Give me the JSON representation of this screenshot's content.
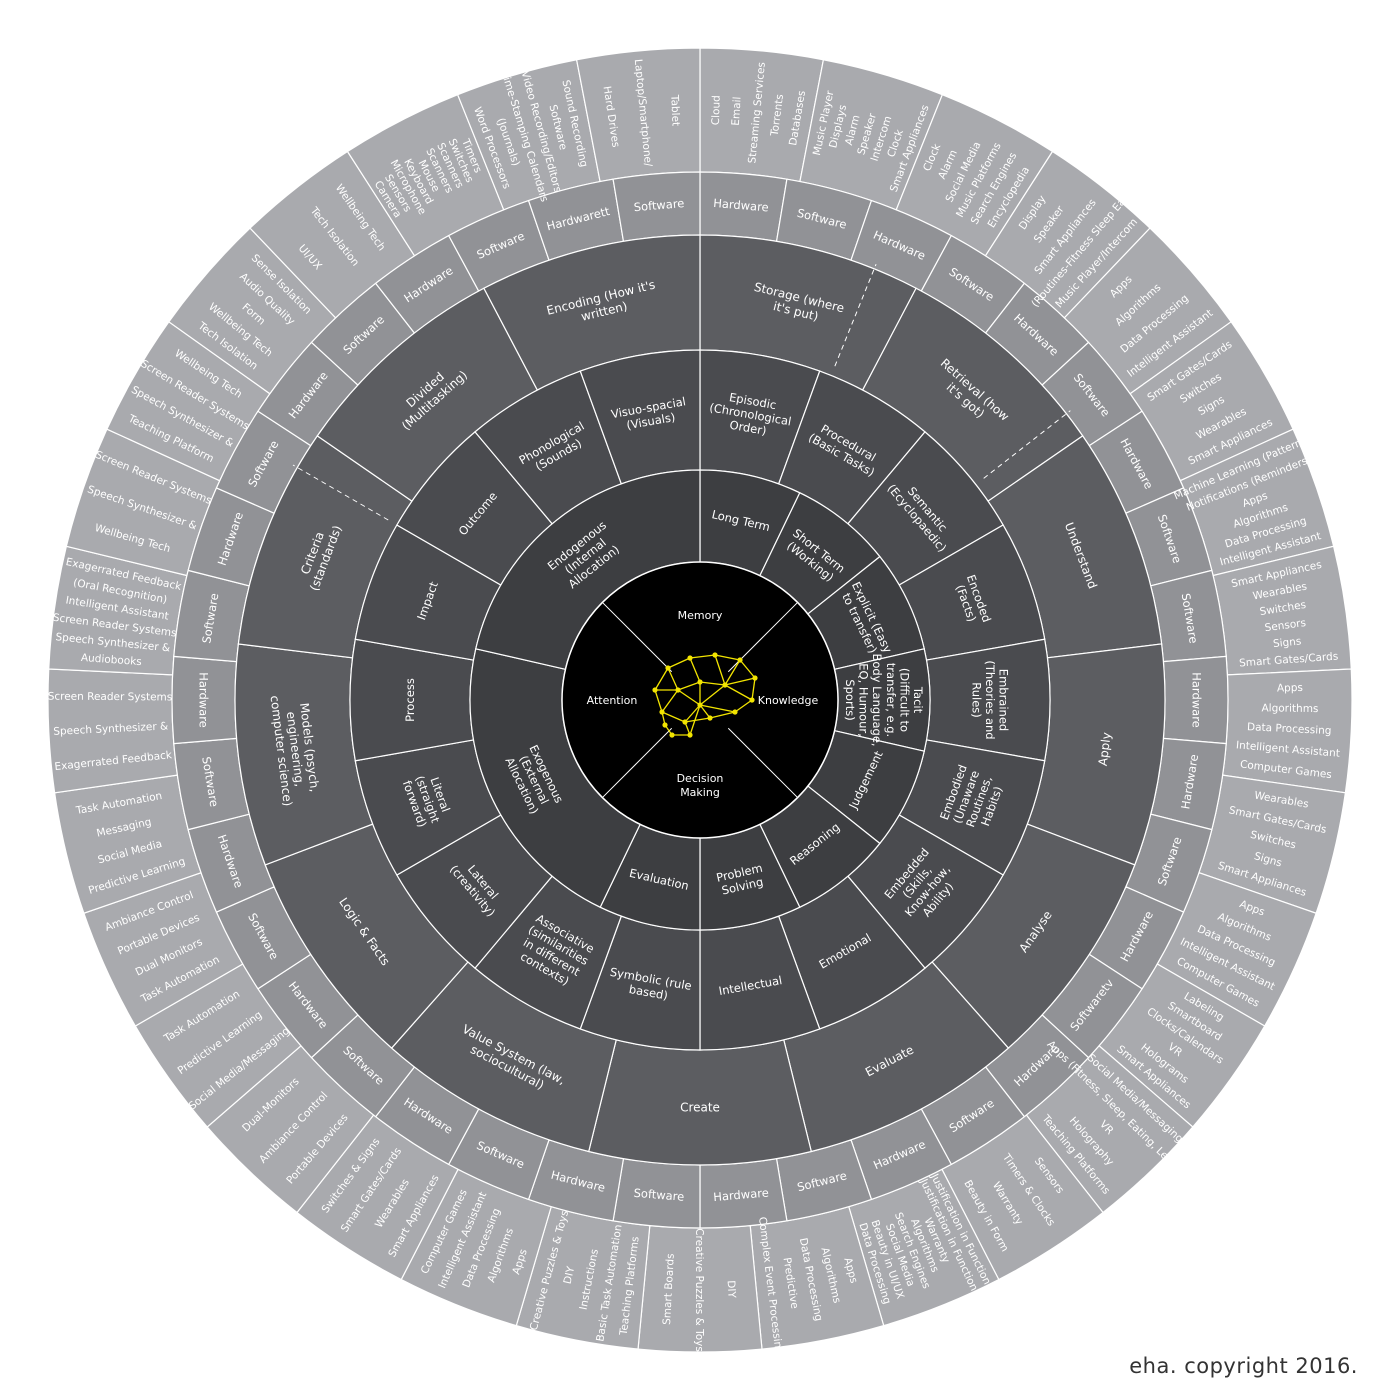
{
  "copyright": "eha. copyright 2016.",
  "colors": {
    "core": "#000000",
    "ring1": "#3d3e41",
    "ring2": "#4a4b4f",
    "ring3": "#5c5d61",
    "ring4": "#6f7074",
    "ring5": "#919296",
    "outer": "#a9aaae",
    "line": "#ffffff",
    "brain": "#f2e400"
  },
  "core": {
    "labels": [
      "Memory",
      "Knowledge",
      "Decision Making",
      "Attention"
    ]
  },
  "ring1": [
    {
      "label": "Long Term"
    },
    {
      "label": "Short Term (Working)"
    },
    {
      "label": "Explicit (Easy to transfer)"
    },
    {
      "label": "Tacit (Difficult to transfer, e.g. Body Language, EQ, Humour, Sports)"
    },
    {
      "label": "Judgement"
    },
    {
      "label": "Reasoning"
    },
    {
      "label": "Problem Solving"
    },
    {
      "label": "Evaluation"
    },
    {
      "label": "Exogenous (External Allocation)"
    },
    {
      "label": "Endogenous (Internal Allocation)"
    }
  ],
  "ring2": [
    {
      "label": "Episodic (Chronological Order)"
    },
    {
      "label": "Procedural (Basic Tasks)"
    },
    {
      "label": "Semantic (Ecyclopaedic)"
    },
    {
      "label": "Encoded (Facts)"
    },
    {
      "label": "Embrained (Theories and Rules)"
    },
    {
      "label": "Embodied (Unaware Routines, Habits)"
    },
    {
      "label": "Embedded (Skills, Know-how, Ability)"
    },
    {
      "label": "Emotional"
    },
    {
      "label": "Intellectual"
    },
    {
      "label": "Symbolic (rule based)"
    },
    {
      "label": "Associative (similarities in different contexts)"
    },
    {
      "label": "Lateral (creativity)"
    },
    {
      "label": "Literal (straight forward)"
    },
    {
      "label": "Process"
    },
    {
      "label": "Impact"
    },
    {
      "label": "Outcome"
    },
    {
      "label": "Phonological (Sounds)"
    },
    {
      "label": "Visuo-spacial (Visuals)"
    }
  ],
  "ring3": [
    {
      "label": "Storage (where it's put)"
    },
    {
      "label": "Retrieval (how it's got)"
    },
    {
      "label": "Understand"
    },
    {
      "label": "Apply"
    },
    {
      "label": "Analyse"
    },
    {
      "label": "Evaluate"
    },
    {
      "label": "Create"
    },
    {
      "label": "Value System (law, sociocultural)"
    },
    {
      "label": "Logic & Facts"
    },
    {
      "label": "Models (psych, engineering, computer science)"
    },
    {
      "label": "Criteria (standards)"
    },
    {
      "label": "Divided (Multitasking)"
    },
    {
      "label": "Encoding (How it's written)"
    }
  ],
  "ring4": [
    {
      "label": "Hardware"
    },
    {
      "label": "Software"
    },
    {
      "label": "Hardware"
    },
    {
      "label": "Software"
    },
    {
      "label": "Hardware"
    },
    {
      "label": "Software"
    },
    {
      "label": "Hardware"
    },
    {
      "label": "Software"
    },
    {
      "label": "Software"
    },
    {
      "label": "Hardware"
    },
    {
      "label": "Hardware"
    },
    {
      "label": "Software"
    },
    {
      "label": "Hardware"
    },
    {
      "label": "Softwaretv"
    },
    {
      "label": "Hardware"
    },
    {
      "label": "Software"
    },
    {
      "label": "Hardware"
    },
    {
      "label": "Software"
    },
    {
      "label": "Hardware"
    },
    {
      "label": "Software"
    },
    {
      "label": "Hardware"
    },
    {
      "label": "Software"
    },
    {
      "label": "Hardware"
    },
    {
      "label": "Software"
    },
    {
      "label": "Hardware"
    },
    {
      "label": "Software"
    },
    {
      "label": "Hardware"
    },
    {
      "label": "Software"
    },
    {
      "label": "Hardware"
    },
    {
      "label": "Software"
    },
    {
      "label": "Hardware"
    },
    {
      "label": "Software"
    },
    {
      "label": "Hardware"
    },
    {
      "label": "Software"
    },
    {
      "label": "Hardware"
    },
    {
      "label": "Software"
    },
    {
      "label": "Hardwarett"
    },
    {
      "label": "Software"
    }
  ],
  "outer": [
    {
      "lines": [
        "Cloud",
        "Email",
        "Streaming Services",
        "Torrents",
        "Databases"
      ]
    },
    {
      "lines": [
        "Music Player",
        "Displays",
        "Alarm",
        "Speaker",
        "Intercom",
        "Clock",
        "Smart Appliances"
      ]
    },
    {
      "lines": [
        "Clock",
        "Alarm",
        "Social Media",
        "Music Platforms",
        "Search Engines",
        "Encyclopedia"
      ]
    },
    {
      "lines": [
        "Display",
        "Speaker",
        "Smart Appliances",
        "(Routines-Fitness Sleep Eat)",
        "Music Player/Intercom"
      ]
    },
    {
      "lines": [
        "Apps",
        "Algorithms",
        "Data Processing",
        "Intelligent Assistant"
      ]
    },
    {
      "lines": [
        "Smart Gates/Cards",
        "Switches",
        "Signs",
        "Wearables",
        "Smart Appliances"
      ]
    },
    {
      "lines": [
        "Machine Learning (Patterns)",
        "Notifications (Reminders)",
        "Apps",
        "Algorithms",
        "Data Processing",
        "Intelligent Assistant"
      ]
    },
    {
      "lines": [
        "Smart Appliances",
        "Wearables",
        "Switches",
        "Sensors",
        "Signs",
        "Smart Gates/Cards"
      ]
    },
    {
      "lines": [
        "Apps",
        "Algorithms",
        "Data Processing",
        "Intelligent Assistant",
        "Computer Games"
      ]
    },
    {
      "lines": [
        "Wearables",
        "Smart Gates/Cards",
        "Switches",
        "Signs",
        "Smart Appliances"
      ]
    },
    {
      "lines": [
        "Apps",
        "Algorithms",
        "Data Processing",
        "Intelligent Assistant",
        "Computer Games"
      ]
    },
    {
      "lines": [
        "Labeling",
        "Smartboard",
        "Clocks/Calendars",
        "VR",
        "Holograms",
        "Smart Appliances"
      ]
    },
    {
      "lines": [
        "Social Media/Messaging",
        "Apps (Fitness, Sleep, Eating, Learning)",
        "VR",
        "Holography",
        "Teaching Platforms"
      ]
    },
    {
      "lines": [
        "Sensors",
        "Timers & Clocks",
        "Warranty",
        "Beauty in Form"
      ]
    },
    {
      "lines": [
        "Justification in Function",
        "Justification in Function",
        "Warranty",
        "Algorithms",
        "Search Engines",
        "Social Media",
        "Beauty in UI/UX",
        "Data Processing"
      ]
    },
    {
      "lines": [
        "Apps",
        "Algorithms",
        "Data Processing",
        "Predictive",
        "Complex Event Processing"
      ]
    },
    {
      "lines": [
        "DIY",
        "Creative Puzzles & Toys",
        "Smart Boards"
      ]
    },
    {
      "lines": [
        "Teaching Platforms",
        "Basic Task Automation",
        "Instructions",
        "DIY",
        "Creative Puzzles & Toys"
      ]
    },
    {
      "lines": [
        "Apps",
        "Algorithms",
        "Data Processing",
        "Intelligent Assistant",
        "Computer Games"
      ]
    },
    {
      "lines": [
        "Smart Appliances",
        "Wearables",
        "Smart Gates/Cards",
        "Switches & Signs"
      ]
    },
    {
      "lines": [
        "Portable Devices",
        "Ambiance Control",
        "Dual-Monitors"
      ]
    },
    {
      "lines": [
        "Social Media/Messaging",
        "Predictive Learning",
        "Task Automation"
      ]
    },
    {
      "lines": [
        "Task Automation",
        "Dual Monitors",
        "Portable Devices",
        "Ambiance Control"
      ]
    },
    {
      "lines": [
        "Predictive Learning",
        "Social Media",
        "Messaging",
        "Task Automation"
      ]
    },
    {
      "lines": [
        "Exagerrated Feedback",
        "Speech Synthesizer &",
        "Screen Reader Systems"
      ]
    },
    {
      "lines": [
        "Audiobooks",
        "Speech Synthesizer &",
        "Screen Reader Systems",
        "Intelligent Assistant",
        "(Oral Recognition)",
        "Exagerrated Feedback"
      ]
    },
    {
      "lines": [
        "Wellbeing Tech",
        "Speech Synthesizer &",
        "Screen Reader Systems"
      ]
    },
    {
      "lines": [
        "Teaching Platform",
        "Speech Synthesizer &",
        "Screen Reader Systems",
        "Wellbeing Tech"
      ]
    },
    {
      "lines": [
        "Tech Isolation",
        "Wellbeing Tech",
        "Form",
        "Audio Quality",
        "Sense Isolation"
      ]
    },
    {
      "lines": [
        "UI/UX",
        "Tech Isolation",
        "Wellbeing Tech"
      ]
    },
    {
      "lines": [
        "Camera",
        "Sensors",
        "Microphone",
        "Keyboard",
        "Mouse",
        "Scanners",
        "Scanners",
        "Switches",
        "Timers"
      ]
    },
    {
      "lines": [
        "Word Processors",
        "(Journals)",
        "Time-Stamping Calendars",
        "Video Recording/Editors",
        "Software",
        "Sound Recording"
      ]
    },
    {
      "lines": [
        "Hard Drives",
        "Laptop/Smartphone/",
        "Tablet"
      ]
    }
  ]
}
